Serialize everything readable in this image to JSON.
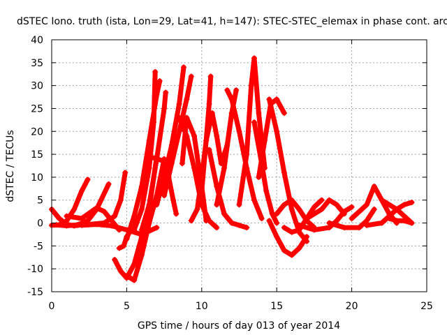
{
  "chart_data": {
    "type": "scatter",
    "title": "dSTEC Iono. truth (ista, Lon=29, Lat=41, h=147): STEC-STEC_elemax in phase cont. arc",
    "xlabel": "GPS time / hours of day 013 of year 2014",
    "ylabel": "dSTEC  / TECUs",
    "xlim": [
      0,
      25
    ],
    "ylim": [
      -15,
      40
    ],
    "xticks": [
      0,
      5,
      10,
      15,
      20,
      25
    ],
    "yticks": [
      -15,
      -10,
      -5,
      0,
      5,
      10,
      15,
      20,
      25,
      30,
      35,
      40
    ],
    "grid": true,
    "marker": "+",
    "color": "#ff0000",
    "series": [
      {
        "x": [
          0,
          0.5,
          1.0,
          1.5,
          2.0,
          2.4
        ],
        "y": [
          -0.5,
          -0.4,
          0.5,
          3,
          7,
          9.5
        ]
      },
      {
        "x": [
          0,
          0.5,
          1.0,
          1.5,
          2.0
        ],
        "y": [
          3,
          1,
          -0.3,
          -0.6,
          -0.4
        ]
      },
      {
        "x": [
          0.3,
          1,
          1.7,
          2.4,
          3.0,
          3.8
        ],
        "y": [
          -0.4,
          -0.6,
          -0.4,
          0.5,
          3,
          8.5
        ]
      },
      {
        "x": [
          1.0,
          2.0,
          3.0,
          3.5,
          4.0,
          4.5
        ],
        "y": [
          1.5,
          1.0,
          3.3,
          2.5,
          0.5,
          -1.5
        ]
      },
      {
        "x": [
          2.5,
          3.5,
          4.2,
          4.6,
          4.9
        ],
        "y": [
          -0.3,
          0,
          1.5,
          5,
          11
        ]
      },
      {
        "x": [
          2.0,
          3.0,
          4.0,
          5.0,
          6.0,
          7.0
        ],
        "y": [
          -0.5,
          -0.3,
          -0.6,
          -1.5,
          -2.5,
          -1.0
        ]
      },
      {
        "x": [
          4.5,
          4.8,
          5.0,
          5.3
        ],
        "y": [
          -5.5,
          -5.0,
          -3.0,
          -1.5
        ]
      },
      {
        "x": [
          4.2,
          4.6,
          5.0,
          5.5,
          6.0,
          6.5,
          7.0
        ],
        "y": [
          -8,
          -10.5,
          -12,
          -9,
          -3,
          3,
          14.5
        ]
      },
      {
        "x": [
          5.0,
          5.5,
          6.0,
          6.5,
          7.0,
          7.5
        ],
        "y": [
          -11.5,
          -12.5,
          -7,
          0,
          6,
          14
        ]
      },
      {
        "x": [
          5.0,
          5.5,
          6.0,
          6.5,
          7.0,
          7.2
        ],
        "y": [
          -3.5,
          1.5,
          8,
          18,
          28,
          31
        ]
      },
      {
        "x": [
          5.5,
          6.0,
          6.5,
          6.8,
          6.9
        ],
        "y": [
          -1.5,
          3,
          12,
          22,
          33
        ]
      },
      {
        "x": [
          6.0,
          6.5,
          7.0,
          7.5,
          7.6
        ],
        "y": [
          -1.5,
          4,
          14,
          25,
          28.5
        ]
      },
      {
        "x": [
          6.5,
          7.0,
          7.5,
          7.8,
          8.1,
          8.3
        ],
        "y": [
          14.5,
          14,
          13.5,
          10,
          5,
          2
        ]
      },
      {
        "x": [
          7.0,
          7.5,
          8.0,
          8.5,
          8.8
        ],
        "y": [
          4,
          10,
          17,
          26,
          34
        ]
      },
      {
        "x": [
          7.5,
          8.0,
          8.5,
          9.0,
          9.3
        ],
        "y": [
          6,
          13,
          20,
          27,
          32
        ]
      },
      {
        "x": [
          8.5,
          9.0,
          9.5,
          10.0,
          10.5,
          11.0
        ],
        "y": [
          23,
          19,
          12,
          4,
          0.5,
          -1
        ]
      },
      {
        "x": [
          8.7,
          9.0,
          9.5,
          10.0,
          10.3
        ],
        "y": [
          13,
          23,
          19,
          8,
          0.5
        ]
      },
      {
        "x": [
          9.3,
          9.7,
          10.0,
          10.3,
          10.5,
          10.6
        ],
        "y": [
          0.5,
          3,
          10,
          18,
          26,
          32
        ]
      },
      {
        "x": [
          10.0,
          10.3,
          10.7,
          11.0,
          11.3,
          11.7,
          12.0
        ],
        "y": [
          7,
          18,
          24,
          19,
          13,
          17,
          24
        ]
      },
      {
        "x": [
          10.5,
          11.0,
          11.5,
          12.0,
          12.5,
          13.0
        ],
        "y": [
          16,
          8,
          2,
          0,
          -0.5,
          -1
        ]
      },
      {
        "x": [
          11.0,
          11.5,
          12.0,
          12.3
        ],
        "y": [
          4,
          12,
          24,
          29
        ]
      },
      {
        "x": [
          11.7,
          12.0,
          12.5,
          13.0,
          13.5,
          14.0
        ],
        "y": [
          29,
          27,
          20,
          12,
          5,
          1
        ]
      },
      {
        "x": [
          12.5,
          13.0,
          13.3,
          13.5,
          13.8,
          14.2
        ],
        "y": [
          4,
          15,
          30,
          36,
          24,
          12
        ]
      },
      {
        "x": [
          13.5,
          14.0,
          14.3,
          14.7,
          15.0
        ],
        "y": [
          22,
          13,
          7,
          2,
          0
        ]
      },
      {
        "x": [
          13.8,
          14.2,
          14.6,
          15.0,
          15.5
        ],
        "y": [
          10,
          18,
          26,
          27,
          24
        ]
      },
      {
        "x": [
          14.5,
          15.0,
          15.5,
          16.0,
          16.5,
          17.0
        ],
        "y": [
          27,
          20,
          11,
          3,
          -2,
          -4
        ]
      },
      {
        "x": [
          14.5,
          15.0,
          15.5,
          16.0,
          16.5,
          17.0
        ],
        "y": [
          0.5,
          -3.0,
          -6.0,
          -7.0,
          -5.5,
          -3.0
        ]
      },
      {
        "x": [
          15.0,
          15.5,
          16.0,
          16.5,
          17.0,
          17.5
        ],
        "y": [
          2,
          4,
          5,
          3,
          0.5,
          -1
        ]
      },
      {
        "x": [
          15.5,
          16.0,
          16.5,
          17.0,
          17.5,
          18.0
        ],
        "y": [
          -1,
          -2,
          -1.5,
          1,
          3.5,
          5
        ]
      },
      {
        "x": [
          16.5,
          17.5,
          18.5,
          19.0,
          19.5,
          20.0
        ],
        "y": [
          -0.5,
          -1.5,
          -1.0,
          0.5,
          2.5,
          3.5
        ]
      },
      {
        "x": [
          17.0,
          18.0,
          18.5,
          19.0,
          19.5
        ],
        "y": [
          1,
          3,
          5,
          4,
          2
        ]
      },
      {
        "x": [
          18.5,
          19.5,
          20.5,
          21.0,
          21.5
        ],
        "y": [
          0,
          -1,
          -1,
          0.5,
          3
        ]
      },
      {
        "x": [
          20.0,
          21.0,
          21.5,
          22.0,
          22.5,
          23.0
        ],
        "y": [
          1,
          4,
          8,
          5,
          2,
          0
        ]
      },
      {
        "x": [
          21.0,
          22.0,
          22.5,
          23.0,
          23.5,
          24.0
        ],
        "y": [
          -0.5,
          0,
          1.5,
          3,
          4,
          4.5
        ]
      },
      {
        "x": [
          22.0,
          23.0,
          23.5,
          24.0
        ],
        "y": [
          5,
          3,
          1.5,
          0
        ]
      },
      {
        "x": [
          22.5,
          23.0,
          23.5,
          24.0
        ],
        "y": [
          1,
          0.5,
          0.5,
          0
        ]
      }
    ]
  }
}
